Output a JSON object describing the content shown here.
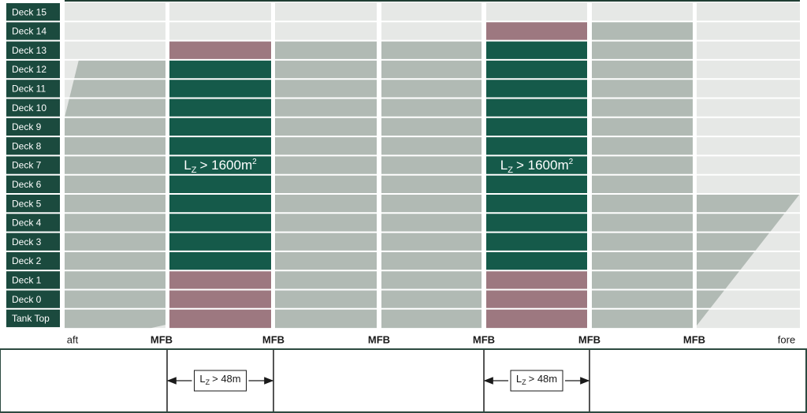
{
  "decks": [
    "Deck 15",
    "Deck 14",
    "Deck 13",
    "Deck 12",
    "Deck 11",
    "Deck 10",
    "Deck 9",
    "Deck 8",
    "Deck 7",
    "Deck 6",
    "Deck 5",
    "Deck 4",
    "Deck 3",
    "Deck 2",
    "Deck 1",
    "Deck 0",
    "Tank Top"
  ],
  "bulkheads": [
    "aft",
    "MFB",
    "MFB",
    "MFB",
    "MFB",
    "MFB",
    "MFB",
    "fore"
  ],
  "zone_labels": [
    {
      "base": "L",
      "sub": "Z",
      "text": "> 1600m",
      "sup": "2"
    },
    {
      "base": "L",
      "sub": "Z",
      "text": "> 1600m",
      "sup": "2"
    }
  ],
  "length_labels": [
    {
      "base": "L",
      "sub": "Z",
      "text": "> 48m"
    },
    {
      "base": "L",
      "sub": "Z",
      "text": "> 48m"
    }
  ]
}
